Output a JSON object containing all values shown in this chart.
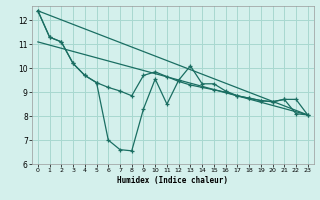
{
  "xlabel": "Humidex (Indice chaleur)",
  "bg_color": "#d4f0ec",
  "line_color": "#1a6e62",
  "grid_color": "#a8d8d0",
  "xlim": [
    -0.5,
    23.5
  ],
  "ylim": [
    6,
    12.6
  ],
  "xticks": [
    0,
    1,
    2,
    3,
    4,
    5,
    6,
    7,
    8,
    9,
    10,
    11,
    12,
    13,
    14,
    15,
    16,
    17,
    18,
    19,
    20,
    21,
    22,
    23
  ],
  "yticks": [
    6,
    7,
    8,
    9,
    10,
    11,
    12
  ],
  "line1_x": [
    0,
    1,
    2,
    3,
    4,
    5,
    6,
    7,
    8,
    9,
    10,
    11,
    12,
    13,
    14,
    15,
    16,
    17,
    18,
    19,
    20,
    21,
    22,
    23
  ],
  "line1_y": [
    12.4,
    11.3,
    11.1,
    10.2,
    9.7,
    9.4,
    7.0,
    6.6,
    6.55,
    8.3,
    9.55,
    8.5,
    9.5,
    10.1,
    9.35,
    9.35,
    9.05,
    8.85,
    8.75,
    8.65,
    8.6,
    8.7,
    8.1,
    8.05
  ],
  "line2_x": [
    0,
    1,
    2,
    3,
    4,
    5,
    6,
    7,
    8,
    9,
    10,
    11,
    12,
    13,
    14,
    15,
    16,
    17,
    18,
    19,
    20,
    21,
    22,
    23
  ],
  "line2_y": [
    12.4,
    11.3,
    11.1,
    10.2,
    9.7,
    9.4,
    9.2,
    9.05,
    8.85,
    9.7,
    9.85,
    9.65,
    9.45,
    9.3,
    9.2,
    9.1,
    9.0,
    8.85,
    8.75,
    8.65,
    8.6,
    8.7,
    8.7,
    8.05
  ],
  "line3_x": [
    0,
    23
  ],
  "line3_y": [
    12.4,
    8.05
  ],
  "line4_x": [
    0,
    23
  ],
  "line4_y": [
    11.1,
    8.05
  ]
}
